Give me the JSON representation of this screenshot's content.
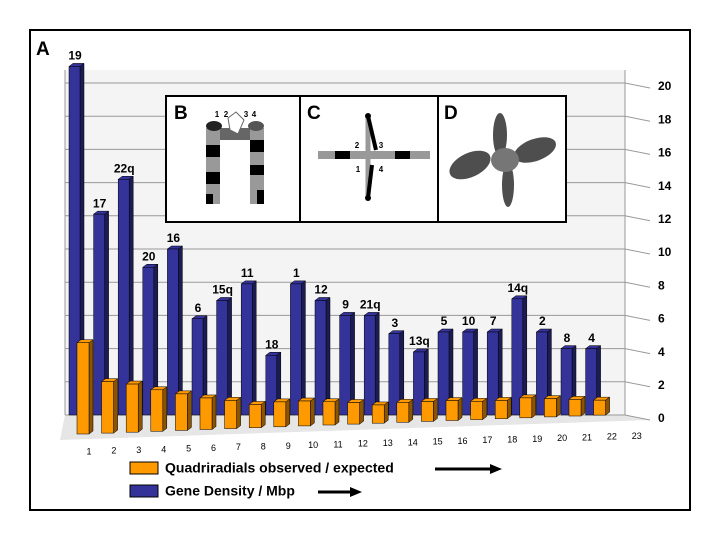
{
  "chart_data": {
    "type": "bar3d",
    "annotations": [
      "A",
      "B",
      "C",
      "D"
    ],
    "inset_labels": [
      "1",
      "2",
      "3",
      "4"
    ],
    "categories": [
      "19",
      "17",
      "22q",
      "20",
      "16",
      "6",
      "15q",
      "11",
      "18",
      "1",
      "12",
      "9",
      "21q",
      "3",
      "13q",
      "5",
      "10",
      "7",
      "14q",
      "2",
      "8",
      "4"
    ],
    "xticks": [
      1,
      2,
      3,
      4,
      5,
      6,
      7,
      8,
      9,
      10,
      11,
      12,
      13,
      14,
      15,
      16,
      17,
      18,
      19,
      20,
      21,
      22,
      23
    ],
    "series": [
      {
        "name": "Quadriradials observed / expected",
        "color": "#ff9900",
        "values": [
          5.5,
          3.1,
          2.9,
          2.5,
          2.2,
          1.9,
          1.7,
          1.4,
          1.5,
          1.5,
          1.4,
          1.3,
          1.1,
          1.2,
          1.2,
          1.2,
          1.1,
          1.1,
          1.2,
          1.1,
          1.0,
          0.9
        ]
      },
      {
        "name": "Gene Density / Mbp",
        "color": "#333399",
        "values": [
          21,
          12.1,
          14.2,
          8.9,
          10,
          5.8,
          6.9,
          7.9,
          3.6,
          7.9,
          6.9,
          6,
          6,
          4.9,
          3.8,
          5,
          5,
          5,
          7,
          5,
          4,
          4
        ]
      }
    ],
    "ylim": [
      0,
      20
    ],
    "yticks": [
      0,
      2,
      4,
      6,
      8,
      10,
      12,
      14,
      16,
      18,
      20
    ],
    "grid": true
  }
}
